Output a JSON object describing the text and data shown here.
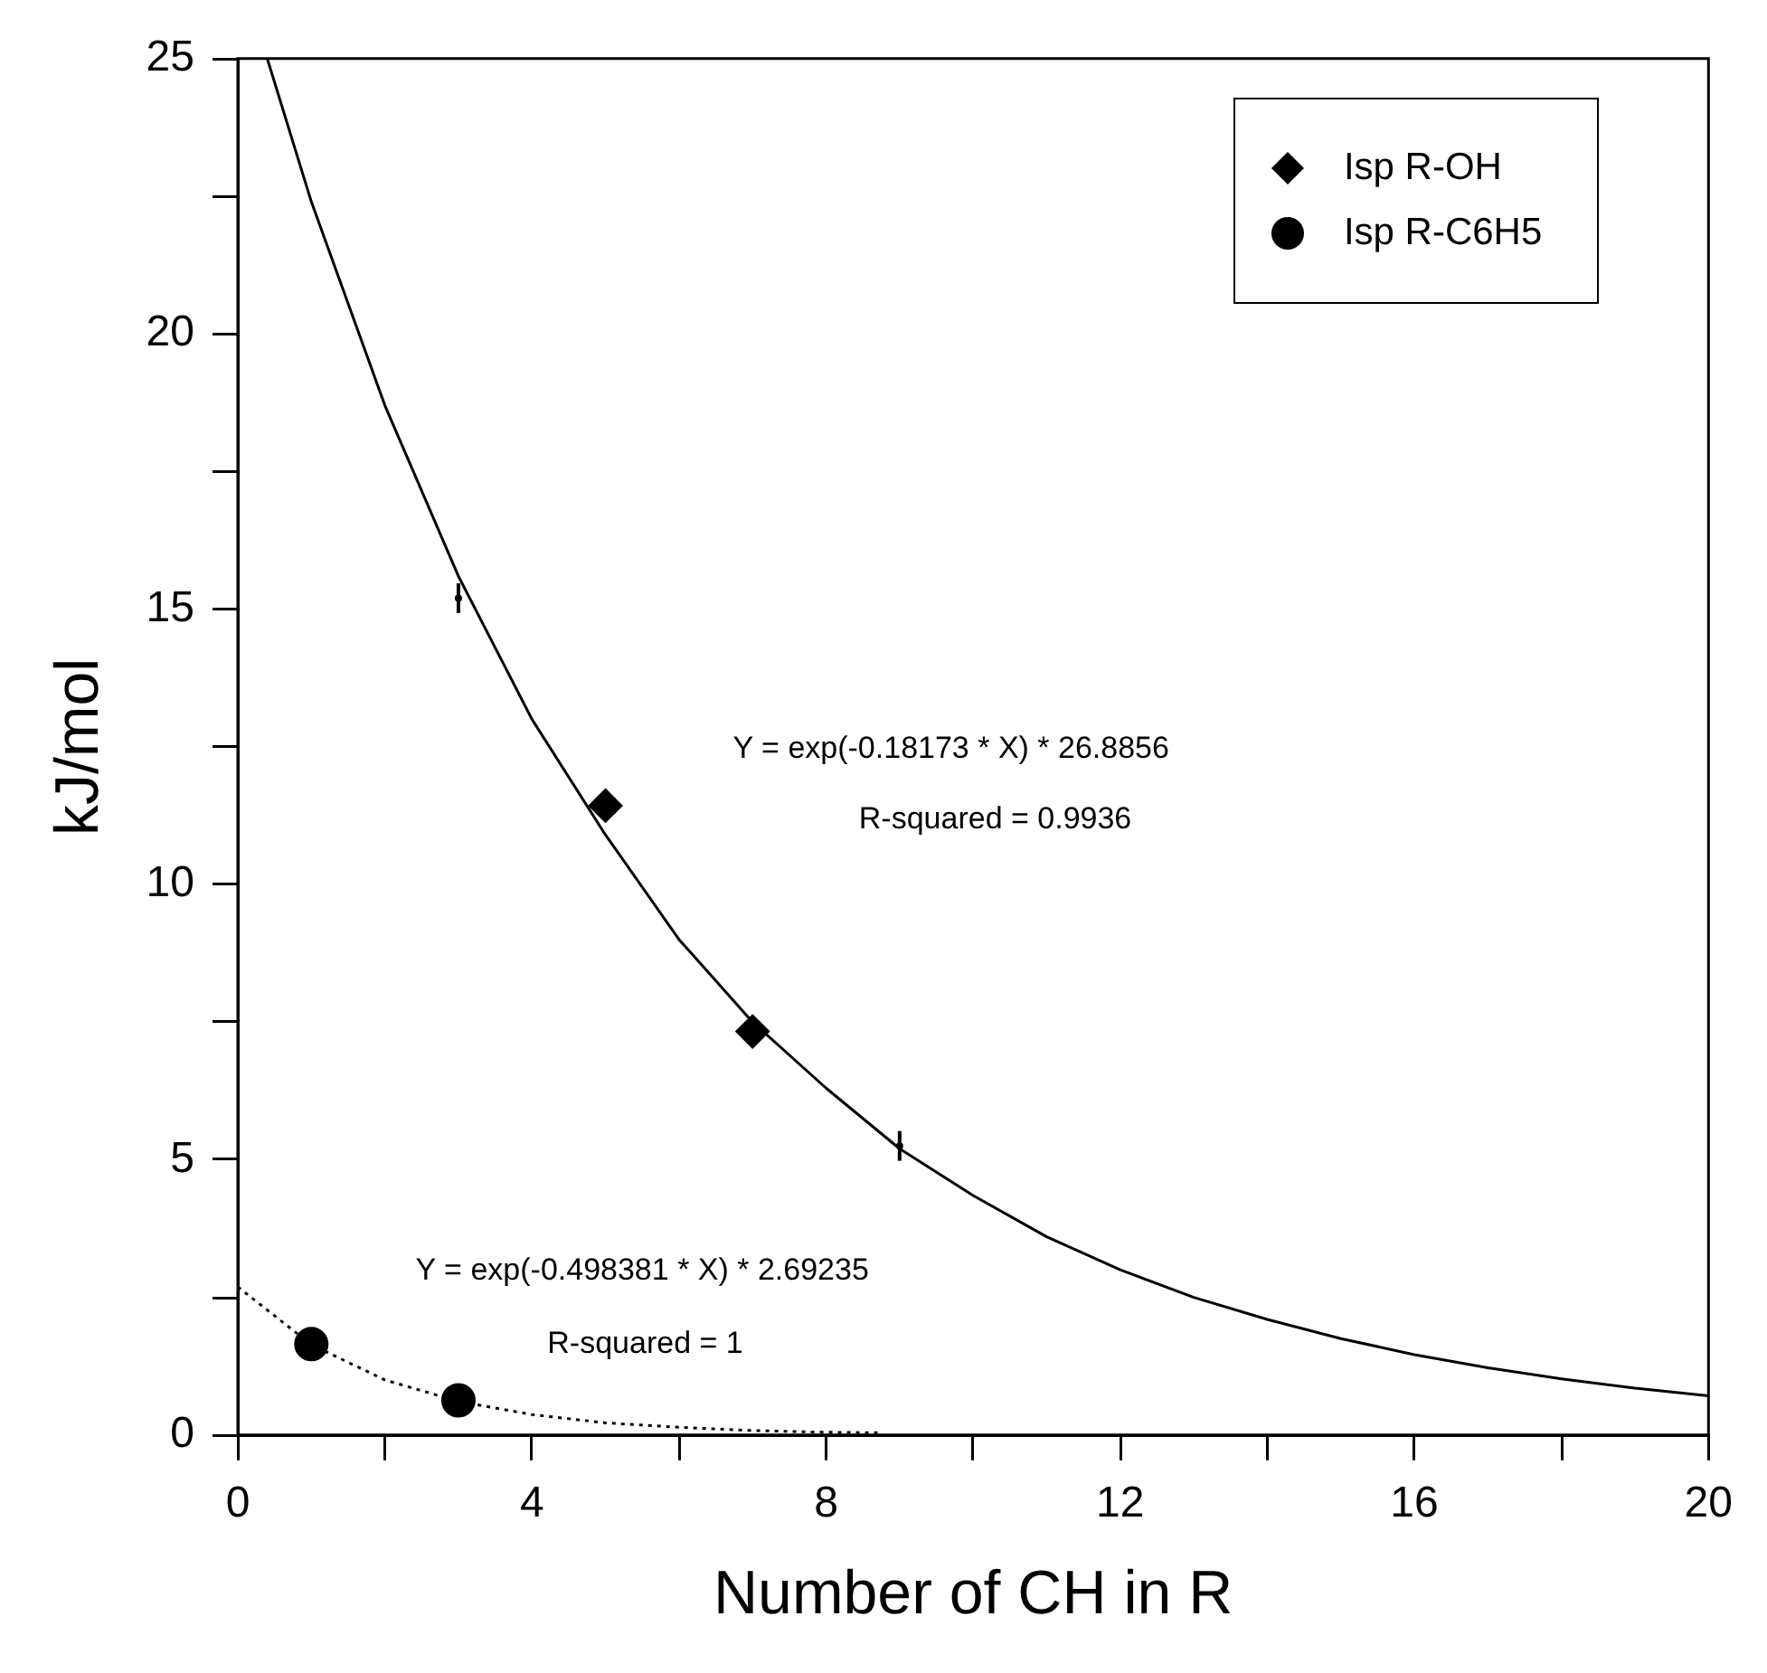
{
  "chart_data": {
    "type": "scatter",
    "xlabel": "Number of CH in R",
    "ylabel": "kJ/mol",
    "xlim": [
      0,
      20
    ],
    "xticks": [
      0,
      {
        "value": 2,
        "label": null
      },
      4,
      {
        "value": 6,
        "label": null
      },
      8,
      {
        "value": 10,
        "label": null
      },
      12,
      {
        "value": 14,
        "label": null
      },
      16,
      {
        "value": 18,
        "label": null
      },
      20
    ],
    "ylim": [
      0,
      25
    ],
    "yticks": [
      0,
      {
        "value": 2.5,
        "label": null
      },
      5,
      {
        "value": 7.5,
        "label": null
      },
      10,
      {
        "value": 12.5,
        "label": null
      },
      15,
      {
        "value": 17.5,
        "label": null
      },
      20,
      {
        "value": 22.5,
        "label": null
      },
      25
    ],
    "grid": false,
    "legend": "top right",
    "series": [
      {
        "name": "Isp R-OH",
        "marker": "diamond",
        "color": "#000000",
        "x": [
          5,
          7
        ],
        "values": [
          11.43,
          7.33
        ]
      },
      {
        "name": "Isp R-C6H5",
        "marker": "circle",
        "color": "#000000",
        "x": [
          1,
          3
        ],
        "values": [
          1.65,
          0.63
        ]
      },
      {
        "marker": "circle",
        "color": "#000000",
        "x": [
          3,
          9
        ],
        "values": [
          15.2,
          5.25
        ],
        "errors": [
          0.27,
          0.27
        ]
      },
      {
        "type": "line",
        "marker": "none",
        "line_style": "solid",
        "color": "#000000",
        "x": [
          0.4,
          1,
          2,
          3,
          4,
          5,
          6,
          7,
          8,
          9,
          10,
          11,
          12,
          13,
          14,
          15,
          16,
          17,
          18,
          19,
          20
        ],
        "values": [
          25,
          22.4,
          18.7,
          15.6,
          13.0,
          10.9,
          9.0,
          7.5,
          6.3,
          5.2,
          4.35,
          3.6,
          3.0,
          2.5,
          2.1,
          1.75,
          1.46,
          1.22,
          1.02,
          0.85,
          0.71
        ]
      },
      {
        "type": "line",
        "marker": "none",
        "line_style": "dotted",
        "color": "#000000",
        "x": [
          0,
          1,
          2,
          3,
          4,
          5,
          6,
          7,
          8,
          8.7
        ],
        "values": [
          2.69,
          1.64,
          1.0,
          0.61,
          0.37,
          0.22,
          0.14,
          0.08,
          0.05,
          0.04
        ]
      }
    ],
    "annotations": [
      "Y = exp(-0.18173 * X) * 26.8856",
      "R-squared = 0.9936",
      "Y = exp(-0.498381 * X) * 2.69235",
      "R-squared = 1"
    ]
  }
}
